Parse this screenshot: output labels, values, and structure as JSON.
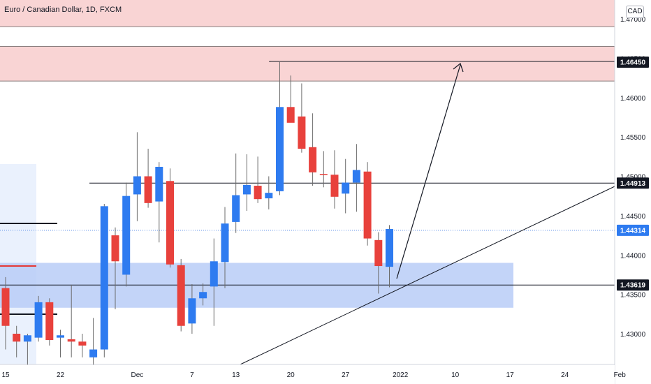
{
  "header": {
    "title": "Euro / Canadian Dollar, 1D, FXCM",
    "currency": "CAD"
  },
  "colors": {
    "up": "#2e7bf0",
    "down": "#e8413c",
    "resistance_zone": "#f9d4d4",
    "support_zone": "#b8ccf7",
    "support_zone_left": "#eaf1fd",
    "line": "#131722",
    "current_price_line": "#5b8ee8"
  },
  "chart_data": {
    "type": "candlestick",
    "symbol": "EURCAD",
    "timeframe": "1D",
    "ylim": [
      1.4275,
      1.4725
    ],
    "y_ticks": [
      {
        "label": "1.43000",
        "value": 1.43
      },
      {
        "label": "1.43500",
        "value": 1.435
      },
      {
        "label": "1.44000",
        "value": 1.44
      },
      {
        "label": "1.44500",
        "value": 1.445
      },
      {
        "label": "1.45000",
        "value": 1.45
      },
      {
        "label": "1.45500",
        "value": 1.455
      },
      {
        "label": "1.46000",
        "value": 1.46
      },
      {
        "label": "1.46500",
        "value": 1.465
      },
      {
        "label": "1.47000",
        "value": 1.47
      }
    ],
    "x_ticks": [
      {
        "label": "15",
        "bar": 0
      },
      {
        "label": "22",
        "bar": 5
      },
      {
        "label": "Dec",
        "bar": 12
      },
      {
        "label": "7",
        "bar": 17
      },
      {
        "label": "13",
        "bar": 21
      },
      {
        "label": "20",
        "bar": 26
      },
      {
        "label": "27",
        "bar": 31
      },
      {
        "label": "2022",
        "bar": 36
      },
      {
        "label": "10",
        "bar": 41
      },
      {
        "label": "17",
        "bar": 46
      },
      {
        "label": "24",
        "bar": 51
      },
      {
        "label": "Feb",
        "bar": 56
      }
    ],
    "candles": [
      {
        "o": 1.4358,
        "h": 1.4372,
        "l": 1.428,
        "c": 1.431
      },
      {
        "o": 1.43,
        "h": 1.431,
        "l": 1.427,
        "c": 1.429
      },
      {
        "o": 1.429,
        "h": 1.43,
        "l": 1.426,
        "c": 1.4298
      },
      {
        "o": 1.4295,
        "h": 1.4348,
        "l": 1.429,
        "c": 1.434
      },
      {
        "o": 1.434,
        "h": 1.4345,
        "l": 1.4285,
        "c": 1.4292
      },
      {
        "o": 1.4295,
        "h": 1.4305,
        "l": 1.427,
        "c": 1.4298
      },
      {
        "o": 1.4293,
        "h": 1.4362,
        "l": 1.427,
        "c": 1.429
      },
      {
        "o": 1.429,
        "h": 1.43,
        "l": 1.427,
        "c": 1.4285
      },
      {
        "o": 1.427,
        "h": 1.432,
        "l": 1.426,
        "c": 1.428
      },
      {
        "o": 1.428,
        "h": 1.4465,
        "l": 1.427,
        "c": 1.4462
      },
      {
        "o": 1.4425,
        "h": 1.4435,
        "l": 1.4331,
        "c": 1.4392
      },
      {
        "o": 1.4375,
        "h": 1.4492,
        "l": 1.436,
        "c": 1.4475
      },
      {
        "o": 1.4477,
        "h": 1.4556,
        "l": 1.4443,
        "c": 1.45
      },
      {
        "o": 1.45,
        "h": 1.4535,
        "l": 1.446,
        "c": 1.4466
      },
      {
        "o": 1.4468,
        "h": 1.4518,
        "l": 1.4416,
        "c": 1.4512
      },
      {
        "o": 1.4494,
        "h": 1.451,
        "l": 1.4384,
        "c": 1.4388
      },
      {
        "o": 1.4387,
        "h": 1.4395,
        "l": 1.4303,
        "c": 1.431
      },
      {
        "o": 1.4313,
        "h": 1.4363,
        "l": 1.43,
        "c": 1.4345
      },
      {
        "o": 1.4345,
        "h": 1.4364,
        "l": 1.4336,
        "c": 1.4353
      },
      {
        "o": 1.436,
        "h": 1.4421,
        "l": 1.431,
        "c": 1.4392
      },
      {
        "o": 1.4391,
        "h": 1.4461,
        "l": 1.4358,
        "c": 1.444
      },
      {
        "o": 1.4442,
        "h": 1.4529,
        "l": 1.4428,
        "c": 1.4476
      },
      {
        "o": 1.4477,
        "h": 1.4528,
        "l": 1.4456,
        "c": 1.4489
      },
      {
        "o": 1.4488,
        "h": 1.4525,
        "l": 1.4466,
        "c": 1.4471
      },
      {
        "o": 1.4472,
        "h": 1.45,
        "l": 1.4458,
        "c": 1.4479
      },
      {
        "o": 1.4481,
        "h": 1.4645,
        "l": 1.4476,
        "c": 1.4588
      },
      {
        "o": 1.4588,
        "h": 1.4628,
        "l": 1.457,
        "c": 1.4568
      },
      {
        "o": 1.4576,
        "h": 1.4618,
        "l": 1.453,
        "c": 1.4535
      },
      {
        "o": 1.4537,
        "h": 1.458,
        "l": 1.4488,
        "c": 1.4505
      },
      {
        "o": 1.4503,
        "h": 1.4532,
        "l": 1.4486,
        "c": 1.4502
      },
      {
        "o": 1.4502,
        "h": 1.4533,
        "l": 1.4459,
        "c": 1.4474
      },
      {
        "o": 1.4478,
        "h": 1.4522,
        "l": 1.4453,
        "c": 1.4492
      },
      {
        "o": 1.4492,
        "h": 1.4541,
        "l": 1.4455,
        "c": 1.4508
      },
      {
        "o": 1.4506,
        "h": 1.4518,
        "l": 1.4412,
        "c": 1.4421
      },
      {
        "o": 1.4419,
        "h": 1.4429,
        "l": 1.4351,
        "c": 1.4386
      },
      {
        "o": 1.4385,
        "h": 1.4438,
        "l": 1.4359,
        "c": 1.4433
      }
    ],
    "levels": {
      "target": {
        "label": "1.46450",
        "value": 1.4645
      },
      "resistance": {
        "label": "1.44913",
        "value": 1.44913
      },
      "current": {
        "label": "1.44314",
        "value": 1.44314
      },
      "support": {
        "label": "1.43619",
        "value": 1.43619
      }
    },
    "zones": {
      "top_resistance": [
        1.469,
        1.4725
      ],
      "resistance": [
        1.4621,
        1.4665
      ],
      "support": [
        1.4333,
        1.439
      ]
    }
  }
}
